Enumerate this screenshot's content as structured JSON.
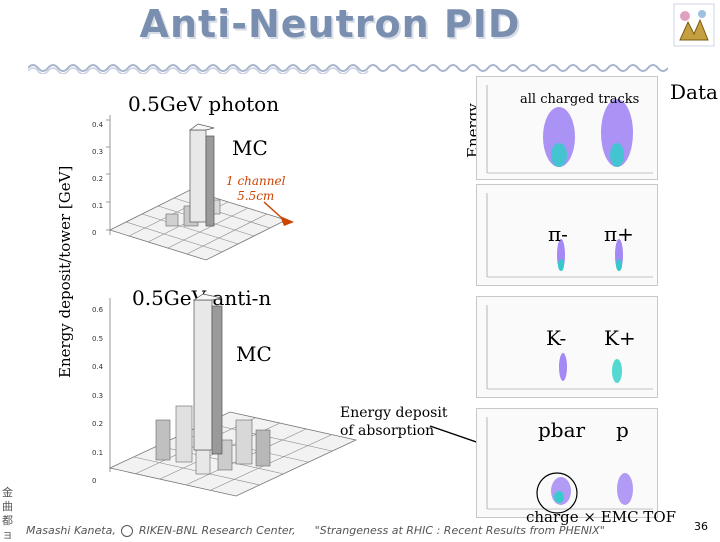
{
  "slide": {
    "title": "Anti-Neutron PID",
    "page_number": "36"
  },
  "mc_photon": {
    "label": "0.5GeV photon",
    "mc": "MC",
    "annotation_line1": "1 channel",
    "annotation_line2": "5.5cm",
    "y_ticks": [
      "0.4",
      "0.3",
      "0.2",
      "0.1",
      "0"
    ]
  },
  "mc_antin": {
    "label": "0.5GeV anti-n",
    "mc": "MC",
    "y_ticks": [
      "0.6",
      "0.5",
      "0.4",
      "0.3",
      "0.2",
      "0.1",
      "0"
    ]
  },
  "axis": {
    "left_ylabel": "Energy deposit/tower [GeV]",
    "right_ylabel": "Energy",
    "absorption_line1": "Energy deposit",
    "absorption_line2": "of absorption"
  },
  "data_plots": {
    "data_label": "Data",
    "all_charged": "all charged tracks",
    "pi_minus": "π-",
    "pi_plus": "π+",
    "k_minus": "K-",
    "k_plus": "K+",
    "pbar": "pbar",
    "p": "p",
    "xlabel": "charge × EMC TOF"
  },
  "footer": {
    "author": "Masashi Kaneta,",
    "institute": "RIKEN-BNL Research Center,",
    "talk": "\"Strangeness at RHIC : Recent Results from PHENIX\""
  },
  "side_text": "金曲都ョ",
  "colors": {
    "title": "#7a8fb0",
    "scatter": "#6a3cf0",
    "core": "#2ad0c8",
    "arrow": "#cc4400"
  }
}
